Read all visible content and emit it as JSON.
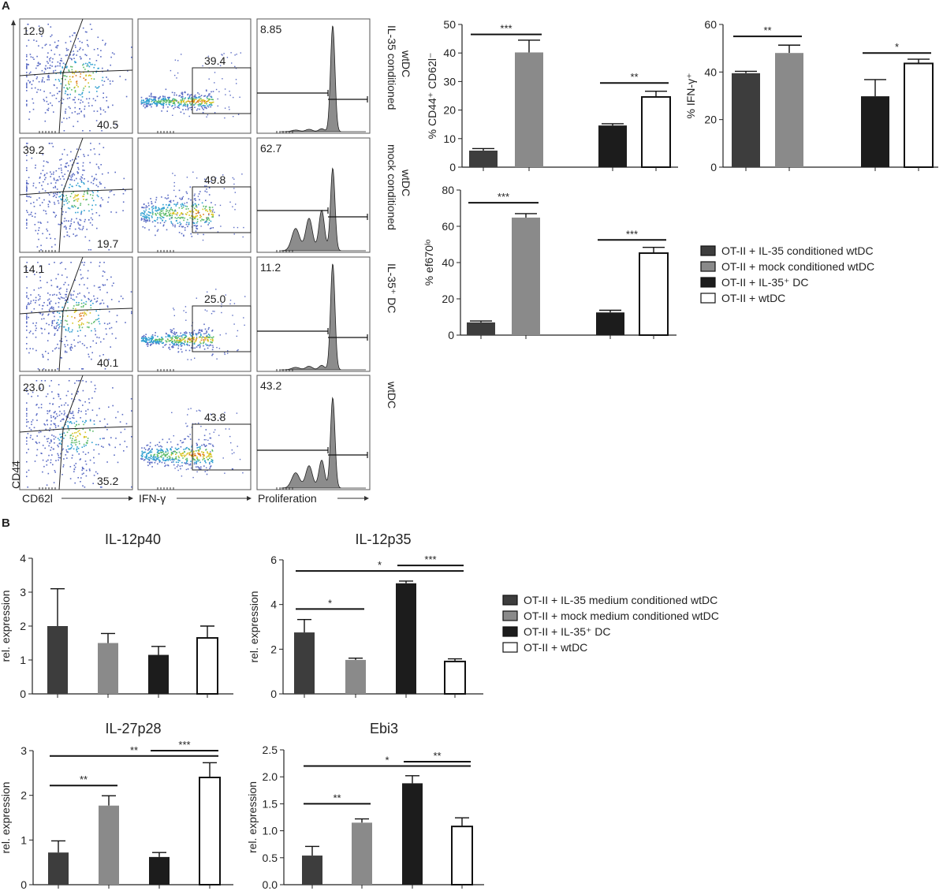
{
  "colors": {
    "il35_conditioned": "#3d3d3d",
    "mock_conditioned": "#8a8a8a",
    "il35_dc": "#1c1c1c",
    "wtdc": "#ffffff",
    "outline": "#111111",
    "histogram_fill": "#8c8c8c"
  },
  "panel_a": {
    "label": "A",
    "x_axis_labels": [
      "CD62l",
      "IFN-γ",
      "Proliferation"
    ],
    "y_axis_label": "CD44",
    "rows": [
      {
        "condition": "IL-35 conditioned wtDC",
        "cond_line1": "IL-35 conditioned",
        "cond_line2": "wtDC",
        "ul": "12.9",
        "lr": "40.5",
        "ifng": "39.4",
        "prolif": "8.85"
      },
      {
        "condition": "mock conditioned wtDC",
        "cond_line1": "mock conditioned",
        "cond_line2": "wtDC",
        "ul": "39.2",
        "lr": "19.7",
        "ifng": "49.8",
        "prolif": "62.7"
      },
      {
        "condition": "IL-35+ DC",
        "cond_line1": "IL-35⁺ DC",
        "cond_line2": "",
        "ul": "14.1",
        "lr": "40.1",
        "ifng": "25.0",
        "prolif": "11.2"
      },
      {
        "condition": "wtDC",
        "cond_line1": "wtDC",
        "cond_line2": "",
        "ul": "23.0",
        "lr": "35.2",
        "ifng": "43.8",
        "prolif": "43.2"
      }
    ],
    "legend": [
      "OT-II + IL-35 conditioned wtDC",
      "OT-II + mock conditioned wtDC",
      "OT-II + IL-35⁺ DC",
      "OT-II + wtDC"
    ]
  },
  "panel_b": {
    "label": "B",
    "legend": [
      "OT-II + IL-35 medium conditioned wtDC",
      "OT-II + mock medium conditioned wtDC",
      "OT-II + IL-35⁺ DC",
      "OT-II + wtDC"
    ]
  },
  "chart_data": [
    {
      "id": "cd44",
      "type": "bar",
      "panel": "A",
      "title": "",
      "ylabel": "% CD44⁺ CD62l⁻",
      "ylim": [
        0,
        50
      ],
      "yticks": [
        "0",
        "10",
        "20",
        "30",
        "40",
        "50"
      ],
      "categories": [
        "OT-II + IL-35 conditioned wtDC",
        "OT-II + mock conditioned wtDC",
        "OT-II + IL-35⁺ DC",
        "OT-II + wtDC"
      ],
      "values": [
        5.8,
        40.2,
        14.6,
        24.6
      ],
      "errors": [
        0.7,
        4.3,
        0.6,
        2.0
      ],
      "significance": [
        {
          "from": 0,
          "to": 1,
          "label": "***",
          "y": 46.5
        },
        {
          "from": 2,
          "to": 3,
          "label": "**",
          "y": 29.5
        }
      ]
    },
    {
      "id": "ifng",
      "type": "bar",
      "panel": "A",
      "title": "",
      "ylabel": "% IFN-γ⁺",
      "ylim": [
        0,
        60
      ],
      "yticks": [
        "0",
        "20",
        "40",
        "60"
      ],
      "categories": [
        "OT-II + IL-35 conditioned wtDC",
        "OT-II + mock conditioned wtDC",
        "OT-II + IL-35⁺ DC",
        "OT-II + wtDC"
      ],
      "values": [
        39.5,
        48.0,
        29.8,
        43.6
      ],
      "errors": [
        0.8,
        3.3,
        7.0,
        1.8
      ],
      "significance": [
        {
          "from": 0,
          "to": 1,
          "label": "**",
          "y": 55.0
        },
        {
          "from": 2,
          "to": 3,
          "label": "*",
          "y": 48.0
        }
      ]
    },
    {
      "id": "ef670",
      "type": "bar",
      "panel": "A",
      "title": "",
      "ylabel": "% ef670ˡᵒ",
      "ylim": [
        0,
        80
      ],
      "yticks": [
        "0",
        "20",
        "40",
        "60",
        "80"
      ],
      "categories": [
        "OT-II + IL-35 conditioned wtDC",
        "OT-II + mock conditioned wtDC",
        "OT-II + IL-35⁺ DC",
        "OT-II + wtDC"
      ],
      "values": [
        7.0,
        64.8,
        12.5,
        45.2
      ],
      "errors": [
        0.8,
        2.2,
        1.2,
        3.2
      ],
      "significance": [
        {
          "from": 0,
          "to": 1,
          "label": "***",
          "y": 73.0
        },
        {
          "from": 2,
          "to": 3,
          "label": "***",
          "y": 52.5
        }
      ]
    },
    {
      "id": "il12p40",
      "type": "bar",
      "panel": "B",
      "title": "IL-12p40",
      "ylabel": "rel. expression",
      "ylim": [
        0,
        4
      ],
      "yticks": [
        "0",
        "1",
        "2",
        "3",
        "4"
      ],
      "categories": [
        "OT-II + IL-35 medium conditioned wtDC",
        "OT-II + mock medium conditioned wtDC",
        "OT-II + IL-35⁺ DC",
        "OT-II + wtDC"
      ],
      "values": [
        2.0,
        1.5,
        1.15,
        1.65
      ],
      "errors": [
        1.1,
        0.28,
        0.25,
        0.35
      ],
      "significance": []
    },
    {
      "id": "il12p35",
      "type": "bar",
      "panel": "B",
      "title": "IL-12p35",
      "ylabel": "rel. expression",
      "ylim": [
        0,
        6
      ],
      "yticks": [
        "0",
        "2",
        "4",
        "6"
      ],
      "categories": [
        "OT-II + IL-35 medium conditioned wtDC",
        "OT-II + mock medium conditioned wtDC",
        "OT-II + IL-35⁺ DC",
        "OT-II + wtDC"
      ],
      "values": [
        2.75,
        1.52,
        4.95,
        1.45
      ],
      "errors": [
        0.58,
        0.08,
        0.1,
        0.12
      ],
      "significance": [
        {
          "from": 0,
          "to": 1,
          "label": "*",
          "y": 3.8
        },
        {
          "from": 0,
          "to": 3,
          "label": "*",
          "y": 5.5
        },
        {
          "from": 2,
          "to": 3,
          "label": "***",
          "y": 5.75
        }
      ]
    },
    {
      "id": "il27p28",
      "type": "bar",
      "panel": "B",
      "title": "IL-27p28",
      "ylabel": "rel. expression",
      "ylim": [
        0,
        3
      ],
      "yticks": [
        "0",
        "1",
        "2",
        "3"
      ],
      "categories": [
        "OT-II + IL-35 medium conditioned wtDC",
        "OT-II + mock medium conditioned wtDC",
        "OT-II + IL-35⁺ DC",
        "OT-II + wtDC"
      ],
      "values": [
        0.72,
        1.77,
        0.62,
        2.4
      ],
      "errors": [
        0.26,
        0.22,
        0.1,
        0.33
      ],
      "significance": [
        {
          "from": 0,
          "to": 1,
          "label": "**",
          "y": 2.22
        },
        {
          "from": 0,
          "to": 3,
          "label": "**",
          "y": 2.88
        },
        {
          "from": 2,
          "to": 3,
          "label": "***",
          "y": 3.0
        }
      ]
    },
    {
      "id": "ebi3",
      "type": "bar",
      "panel": "B",
      "title": "Ebi3",
      "ylabel": "rel. expression",
      "ylim": [
        0,
        2.5
      ],
      "yticks": [
        "0.0",
        "0.5",
        "1.0",
        "1.5",
        "2.0",
        "2.5"
      ],
      "categories": [
        "OT-II + IL-35 medium conditioned wtDC",
        "OT-II + mock medium conditioned wtDC",
        "OT-II + IL-35⁺ DC",
        "OT-II + wtDC"
      ],
      "values": [
        0.54,
        1.15,
        1.88,
        1.08
      ],
      "errors": [
        0.17,
        0.07,
        0.14,
        0.16
      ],
      "significance": [
        {
          "from": 0,
          "to": 1,
          "label": "**",
          "y": 1.5
        },
        {
          "from": 0,
          "to": 3,
          "label": "*",
          "y": 2.2
        },
        {
          "from": 2,
          "to": 3,
          "label": "**",
          "y": 2.28
        }
      ]
    }
  ]
}
